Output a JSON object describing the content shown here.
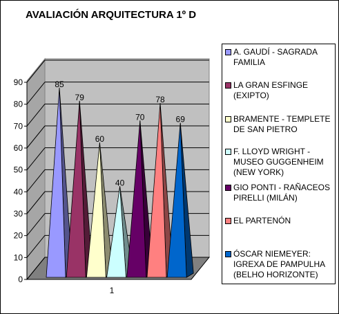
{
  "chart_data": {
    "type": "bar",
    "title": "AVALIACIÓN ARQUITECTURA 1º D",
    "categories": [
      "1"
    ],
    "ylim": [
      0,
      90
    ],
    "yticks": [
      0,
      10,
      20,
      30,
      40,
      50,
      60,
      70,
      80,
      90
    ],
    "grid": true,
    "legend_position": "right",
    "series": [
      {
        "name": "A. GAUDÍ - SAGRADA FAMILIA",
        "values": [
          85
        ],
        "color": "#9999ff"
      },
      {
        "name": "LA GRAN ESFINGE (EXIPTO)",
        "values": [
          79
        ],
        "color": "#993366"
      },
      {
        "name": "BRAMENTE - TEMPLETE DE SAN PIETRO",
        "values": [
          60
        ],
        "color": "#ffffcc"
      },
      {
        "name": "F. LLOYD WRIGHT - MUSEO GUGGENHEIM (NEW YORK)",
        "values": [
          40
        ],
        "color": "#ccffff"
      },
      {
        "name": "GIO PONTI - RAÑACEOS PIRELLI (MILÁN)",
        "values": [
          70
        ],
        "color": "#660066"
      },
      {
        "name": "EL PARTENÓN",
        "values": [
          78
        ],
        "color": "#ff8080"
      },
      {
        "name": "ÓSCAR NIEMEYER: IGREXA DE PAMPULHA (BELHO HORIZONTE)",
        "values": [
          69
        ],
        "color": "#0066cc"
      }
    ]
  }
}
